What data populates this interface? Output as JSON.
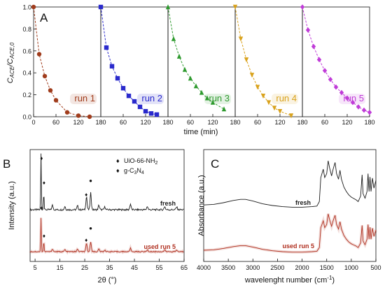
{
  "chart_data": [
    {
      "panel_label": "A",
      "type": "scatter",
      "ylabel_main": "C",
      "ylabel_sub1": "ACE",
      "ylabel_mid": "/C",
      "ylabel_sub2": "ACE,0",
      "xlabel": "time (min)",
      "ylim": [
        0,
        1.0
      ],
      "yticks": [
        "0.0",
        "0.2",
        "0.4",
        "0.6",
        "0.8",
        "1.0"
      ],
      "xlim": [
        0,
        180
      ],
      "xticks": [
        "0",
        "60",
        "120",
        "180"
      ],
      "series": [
        {
          "name": "run 1",
          "color": "#a03c1c",
          "marker": "circle",
          "x": [
            0,
            15,
            30,
            45,
            60,
            90,
            120,
            150
          ],
          "y": [
            1.0,
            0.57,
            0.37,
            0.24,
            0.15,
            0.04,
            0.01,
            0.0
          ]
        },
        {
          "name": "run 2",
          "color": "#2a2acc",
          "marker": "square",
          "x": [
            0,
            15,
            30,
            45,
            60,
            75,
            90,
            105,
            120,
            135,
            150
          ],
          "y": [
            1.0,
            0.63,
            0.46,
            0.35,
            0.26,
            0.19,
            0.14,
            0.09,
            0.05,
            0.03,
            0.02
          ]
        },
        {
          "name": "run 3",
          "color": "#2e9a2e",
          "marker": "triangle",
          "x": [
            0,
            15,
            30,
            45,
            60,
            75,
            90,
            105,
            120,
            150
          ],
          "y": [
            1.0,
            0.71,
            0.55,
            0.43,
            0.35,
            0.28,
            0.22,
            0.17,
            0.13,
            0.07
          ]
        },
        {
          "name": "run 4",
          "color": "#d9a21c",
          "marker": "triangle-down",
          "x": [
            0,
            15,
            30,
            45,
            60,
            75,
            90,
            105,
            120,
            150
          ],
          "y": [
            1.0,
            0.71,
            0.52,
            0.38,
            0.27,
            0.19,
            0.13,
            0.08,
            0.05,
            0.01
          ]
        },
        {
          "name": "run 5",
          "color": "#c03cd8",
          "marker": "diamond",
          "x": [
            0,
            15,
            30,
            45,
            60,
            75,
            90,
            105,
            120,
            135,
            150,
            165,
            180
          ],
          "y": [
            1.0,
            0.79,
            0.64,
            0.52,
            0.42,
            0.34,
            0.27,
            0.22,
            0.17,
            0.13,
            0.09,
            0.06,
            0.04
          ]
        }
      ]
    },
    {
      "panel_label": "B",
      "type": "line",
      "xlabel": "2θ (°)",
      "ylabel": "Intensity (a.u.)",
      "xlim": [
        3,
        65
      ],
      "xticks": [
        "5",
        "15",
        "25",
        "35",
        "45",
        "55",
        "65"
      ],
      "legend": [
        {
          "symbol": "♦",
          "label": "UiO-66-NH",
          "sub": "2"
        },
        {
          "symbol": "♦",
          "label": "g-C",
          "sub": "3",
          "label2": "N",
          "sub2": "4"
        }
      ],
      "series": [
        {
          "name": "fresh",
          "color": "#1a1a1a",
          "peaks": [
            [
              7.4,
              1.0
            ],
            [
              8.5,
              0.32
            ],
            [
              12.0,
              0.08
            ],
            [
              17.0,
              0.06
            ],
            [
              22.1,
              0.07
            ],
            [
              25.7,
              0.24
            ],
            [
              27.4,
              0.3
            ],
            [
              30.7,
              0.08
            ],
            [
              33.1,
              0.05
            ],
            [
              43.4,
              0.1
            ],
            [
              50.2,
              0.06
            ],
            [
              57.2,
              0.06
            ],
            [
              62.0,
              0.05
            ]
          ]
        },
        {
          "name": "used run 5",
          "color": "#b03020",
          "peaks": [
            [
              7.4,
              1.0
            ],
            [
              8.5,
              0.32
            ],
            [
              12.0,
              0.08
            ],
            [
              17.0,
              0.06
            ],
            [
              22.1,
              0.07
            ],
            [
              25.7,
              0.24
            ],
            [
              27.4,
              0.3
            ],
            [
              30.7,
              0.08
            ],
            [
              33.1,
              0.05
            ],
            [
              43.4,
              0.1
            ],
            [
              50.2,
              0.06
            ],
            [
              57.2,
              0.06
            ],
            [
              62.0,
              0.05
            ]
          ]
        }
      ],
      "markers": [
        {
          "symbol": "♦",
          "x": 7.6,
          "series": "fresh"
        },
        {
          "symbol": "♦",
          "x": 8.6,
          "series": "fresh"
        },
        {
          "symbol": "♦",
          "x": 25.6,
          "series": "fresh"
        },
        {
          "symbol": "●",
          "x": 27.4,
          "series": "fresh"
        },
        {
          "symbol": "♦",
          "x": 7.6,
          "series": "used run 5"
        },
        {
          "symbol": "♦",
          "x": 8.6,
          "series": "used run 5"
        },
        {
          "symbol": "♦",
          "x": 25.6,
          "series": "used run 5"
        },
        {
          "symbol": "●",
          "x": 27.4,
          "series": "used run 5"
        }
      ]
    },
    {
      "panel_label": "C",
      "type": "line",
      "xlabel": "wavelenght number (cm",
      "xlabel_sup": "-1",
      "xlabel_end": ")",
      "ylabel": "Absorbance (a.u.)",
      "xlim": [
        4000,
        500
      ],
      "xticks": [
        "4000",
        "3500",
        "3000",
        "2500",
        "2000",
        "1500",
        "1000",
        "500"
      ],
      "series": [
        {
          "name": "fresh",
          "color": "#1a1a1a",
          "x": [
            4000,
            3800,
            3600,
            3400,
            3250,
            3150,
            3000,
            2800,
            2600,
            2400,
            2200,
            2000,
            1800,
            1700,
            1650,
            1620,
            1570,
            1540,
            1500,
            1470,
            1440,
            1400,
            1370,
            1330,
            1300,
            1260,
            1230,
            1200,
            1150,
            1100,
            1050,
            1000,
            960,
            900,
            860,
            810,
            780,
            760,
            720,
            680,
            660,
            640,
            620,
            600,
            570,
            540,
            500
          ],
          "y": [
            0.06,
            0.07,
            0.1,
            0.14,
            0.16,
            0.16,
            0.13,
            0.08,
            0.05,
            0.03,
            0.02,
            0.02,
            0.03,
            0.04,
            0.12,
            0.55,
            0.7,
            0.55,
            0.62,
            0.85,
            0.72,
            0.58,
            0.7,
            0.82,
            0.62,
            0.52,
            0.68,
            0.52,
            0.38,
            0.3,
            0.24,
            0.2,
            0.18,
            0.15,
            0.12,
            0.22,
            0.6,
            0.26,
            0.18,
            0.3,
            0.62,
            0.3,
            0.56,
            0.3,
            0.54,
            0.36,
            0.5
          ]
        },
        {
          "name": "used run 5",
          "color": "#b03020",
          "x": [
            4000,
            3800,
            3600,
            3400,
            3250,
            3150,
            3000,
            2800,
            2600,
            2400,
            2200,
            2000,
            1800,
            1700,
            1650,
            1620,
            1570,
            1540,
            1500,
            1470,
            1440,
            1400,
            1370,
            1330,
            1300,
            1260,
            1230,
            1200,
            1150,
            1100,
            1050,
            1000,
            960,
            900,
            860,
            810,
            780,
            760,
            720,
            680,
            660,
            640,
            620,
            600,
            570,
            540,
            500
          ],
          "y": [
            0.06,
            0.07,
            0.1,
            0.14,
            0.16,
            0.16,
            0.13,
            0.08,
            0.05,
            0.03,
            0.02,
            0.02,
            0.03,
            0.04,
            0.12,
            0.55,
            0.7,
            0.55,
            0.62,
            0.85,
            0.72,
            0.58,
            0.7,
            0.82,
            0.62,
            0.52,
            0.68,
            0.52,
            0.38,
            0.3,
            0.24,
            0.2,
            0.18,
            0.15,
            0.12,
            0.22,
            0.6,
            0.26,
            0.18,
            0.3,
            0.62,
            0.3,
            0.56,
            0.3,
            0.54,
            0.36,
            0.5
          ]
        }
      ]
    }
  ]
}
